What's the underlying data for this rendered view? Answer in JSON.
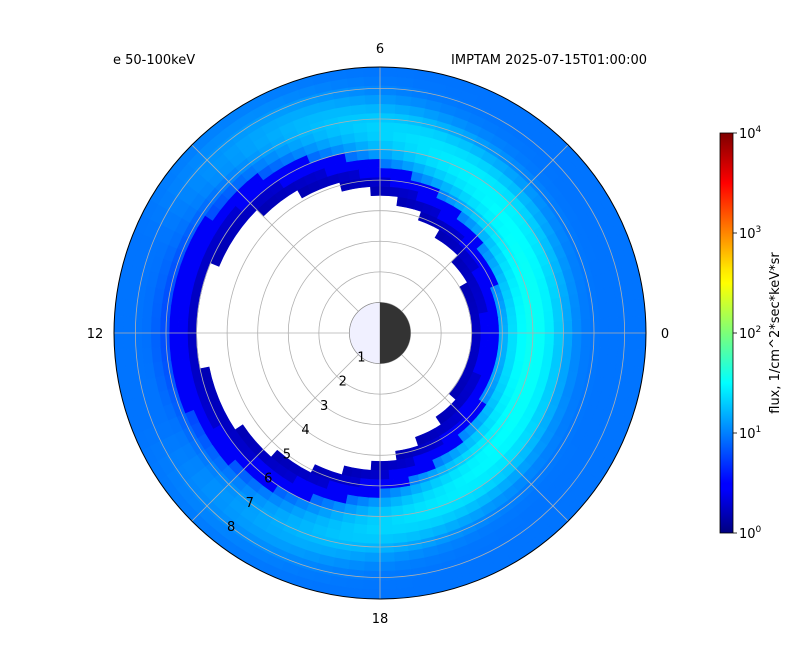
{
  "chart_data": {
    "type": "polar-heatmap",
    "title_left": "e 50-100keV",
    "title_right": "IMPTAM 2025-07-15T01:00:00",
    "angular_axis": {
      "quantity": "MLT",
      "ticks": [
        {
          "label": "0",
          "mlt": 0
        },
        {
          "label": "6",
          "mlt": 6
        },
        {
          "label": "12",
          "mlt": 12
        },
        {
          "label": "18",
          "mlt": 18
        }
      ],
      "grid_spokes_per_day": 8
    },
    "radial_axis": {
      "quantity": "L",
      "range": [
        0,
        8.7
      ],
      "ticks": [
        1,
        2,
        3,
        4,
        5,
        6,
        7,
        8
      ],
      "tick_labels": [
        "1",
        "2",
        "3",
        "4",
        "5",
        "6",
        "7",
        "8"
      ],
      "label_mlt": 15.5
    },
    "grid": true,
    "earth": {
      "radius": 1.0,
      "day_color": "#f0f0ff",
      "night_color": "#333333"
    },
    "colorbar": {
      "scale": "log",
      "range": [
        1,
        10000
      ],
      "ticks": [
        1,
        10,
        100,
        1000,
        10000
      ],
      "tick_labels": [
        "10^0",
        "10^1",
        "10^2",
        "10^3",
        "10^4"
      ],
      "label": "flux, 1/cm^2*sec*keV*sr",
      "colormap": "jet"
    },
    "flux_regions": [
      {
        "name": "inner edge (no data inside)",
        "L_day": 5.9,
        "L_dawn": 4.3,
        "L_night": 2.9,
        "L_dusk": 3.9,
        "flux": 0
      },
      {
        "name": "inner boundary band",
        "width_L": 0.5,
        "flux": 1.6
      },
      {
        "name": "dark blue belt",
        "width_L": 0.5,
        "flux": 3
      },
      {
        "name": "flux peak ridge",
        "peak_flux_night": 35,
        "peak_flux_day": 8
      },
      {
        "name": "outer region",
        "flux": 9
      }
    ]
  }
}
